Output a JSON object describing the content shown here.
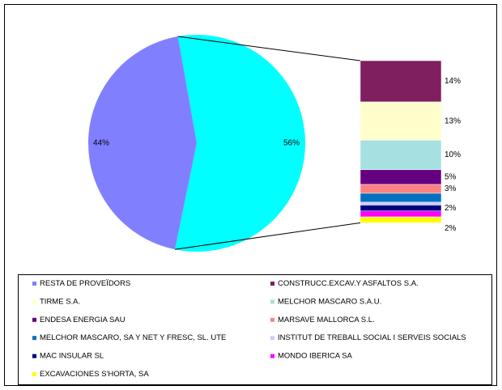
{
  "chart_data": {
    "type": "pie_of_bar",
    "categories": [
      "RESTA DE PROVEÏDORS",
      "CONSTRUCC.EXCAV.Y ASFALTOS S.A.",
      "TIRME S.A.",
      "MELCHOR MASCARO S.A.U.",
      "ENDESA ENERGIA SAU",
      "MARSAVE MALLORCA S.L.",
      "MELCHOR MASCARO, SA Y NET Y FRESC, SL. UTE",
      "INSTITUT DE TREBALL SOCIAL I SERVEIS SOCIALS",
      "MAC INSULAR SL",
      "MONDO IBERICA SA",
      "EXCAVACIONES S'HORTA, SA"
    ],
    "colors": [
      "#8080ff",
      "#7f1f5f",
      "#ffffcc",
      "#a6e0e0",
      "#660080",
      "#ff8080",
      "#0070c0",
      "#ccccff",
      "#000080",
      "#ff00ff",
      "#ffff00"
    ],
    "values": [
      44,
      14,
      13,
      10,
      5,
      3,
      3,
      1,
      2,
      2,
      2
    ],
    "value_labels": [
      "44%",
      "14%",
      "13%",
      "10%",
      "5%",
      "3%",
      null,
      null,
      "2%",
      null,
      "2%"
    ],
    "other": {
      "value": 56,
      "value_label": "56%",
      "color": "#00ffff"
    }
  }
}
